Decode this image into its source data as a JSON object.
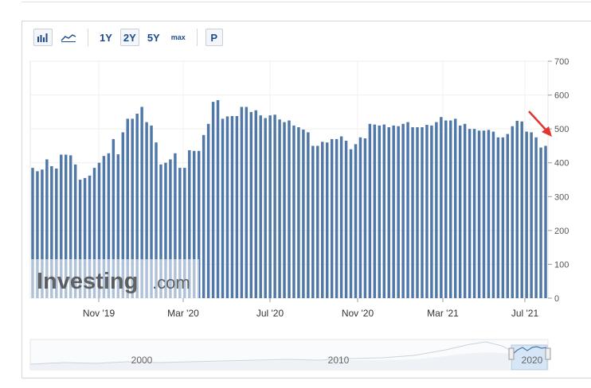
{
  "toolbar": {
    "bar_icon": "bar-chart-icon",
    "line_icon": "line-chart-icon",
    "range_1y": "1Y",
    "range_2y": "2Y",
    "range_5y": "5Y",
    "range_max": "max",
    "print_label": "P"
  },
  "watermark": {
    "brand": "Investing",
    "suffix": ".com"
  },
  "navigator": {
    "labels": [
      "2000",
      "2010",
      "2020"
    ]
  },
  "colors": {
    "bar": "#4f78a8",
    "arrow": "#e3342f",
    "navigator_fill": "#d6e6f7"
  },
  "chart_data": {
    "type": "bar",
    "title": "",
    "xlabel": "",
    "ylabel": "",
    "ylim": [
      0,
      700
    ],
    "yticks": [
      0,
      100,
      200,
      300,
      400,
      500,
      600,
      700
    ],
    "x_tick_labels": [
      "Nov '19",
      "Mar '20",
      "Jul '20",
      "Nov '20",
      "Mar '21",
      "Jul '21"
    ],
    "grid": true,
    "annotation": "arrow",
    "values": [
      385,
      375,
      380,
      410,
      390,
      383,
      424,
      424,
      422,
      395,
      350,
      355,
      362,
      385,
      400,
      420,
      428,
      470,
      425,
      490,
      530,
      530,
      545,
      565,
      520,
      510,
      460,
      395,
      400,
      410,
      428,
      385,
      385,
      437,
      435,
      435,
      482,
      515,
      580,
      585,
      530,
      537,
      538,
      538,
      565,
      565,
      550,
      555,
      540,
      532,
      540,
      542,
      528,
      520,
      525,
      510,
      505,
      498,
      490,
      450,
      450,
      462,
      460,
      470,
      470,
      478,
      465,
      440,
      455,
      475,
      472,
      515,
      513,
      510,
      513,
      505,
      510,
      508,
      515,
      520,
      505,
      505,
      505,
      512,
      510,
      520,
      535,
      525,
      525,
      530,
      510,
      515,
      500,
      500,
      495,
      495,
      497,
      492,
      475,
      475,
      485,
      508,
      524,
      522,
      492,
      490,
      475,
      445,
      450
    ]
  }
}
